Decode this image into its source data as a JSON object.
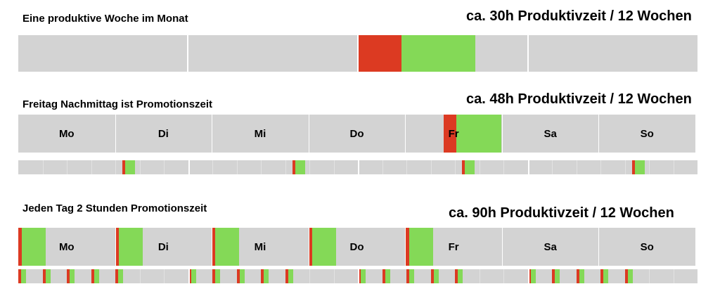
{
  "colors": {
    "background": "#d3d3d3",
    "promo": "#dc3a22",
    "productive": "#84d957",
    "separator": "#ffffff"
  },
  "sections": [
    {
      "title": "Eine produktive Woche im Monat",
      "headline": "ca. 30h Produktivzeit / 12 Wochen"
    },
    {
      "title": "Freitag Nachmittag ist Promotionszeit",
      "headline": "ca. 48h Produktivzeit / 12 Wochen"
    },
    {
      "title": "Jeden Tag 2 Stunden Promotionszeit",
      "headline": "ca. 90h Produktivzeit / 12 Wochen"
    }
  ],
  "days": [
    "Mo",
    "Di",
    "Mi",
    "Do",
    "Fr",
    "Sa",
    "So"
  ]
}
